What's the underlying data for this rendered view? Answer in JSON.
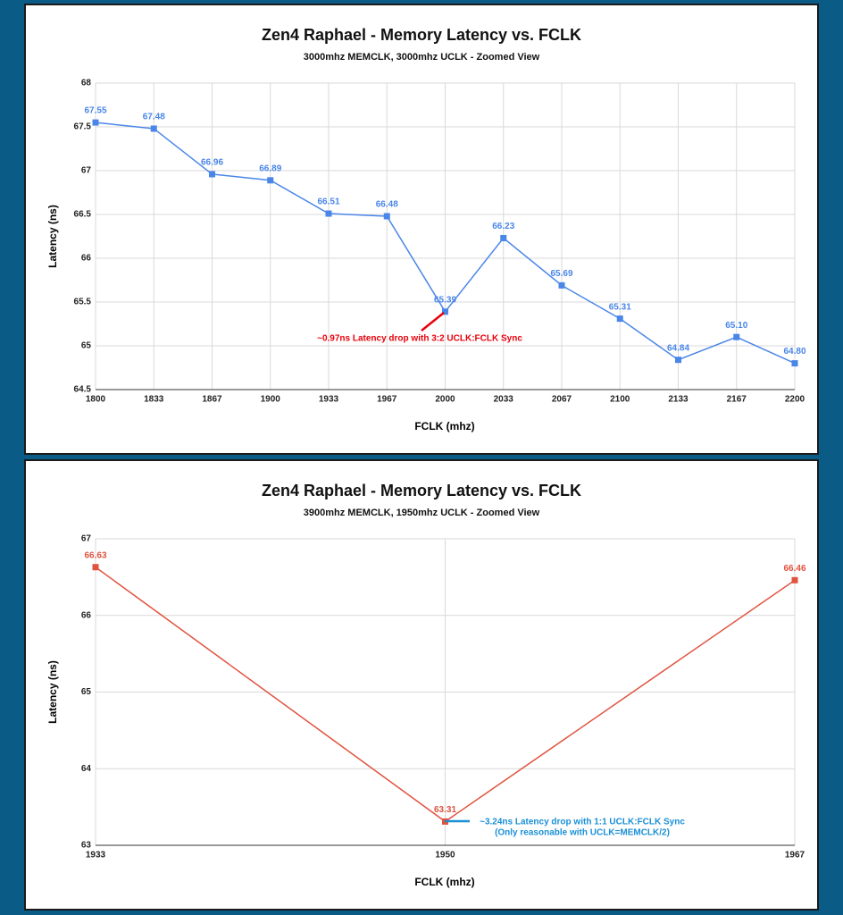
{
  "chart_data": [
    {
      "type": "line",
      "title": "Zen4 Raphael - Memory Latency vs. FCLK",
      "subtitle": "3000mhz MEMCLK, 3000mhz UCLK - Zoomed View",
      "x_label": "FCLK (mhz)",
      "y_label": "Latency (ns)",
      "categories": [
        "1800",
        "1833",
        "1867",
        "1900",
        "1933",
        "1967",
        "2000",
        "2033",
        "2067",
        "2100",
        "2133",
        "2167",
        "2200"
      ],
      "values": [
        67.55,
        67.48,
        66.96,
        66.89,
        66.51,
        66.48,
        65.39,
        66.23,
        65.69,
        65.31,
        64.84,
        65.1,
        64.8
      ],
      "value_labels": [
        "67.55",
        "67.48",
        "66.96",
        "66.89",
        "66.51",
        "66.48",
        "65.39",
        "66.23",
        "65.69",
        "65.31",
        "64.84",
        "65.10",
        "64.80"
      ],
      "color": "#4a86e8",
      "ylim": [
        64.5,
        68
      ],
      "yticks": [
        64.5,
        65,
        65.5,
        66,
        66.5,
        67,
        67.5,
        68
      ],
      "grid": true,
      "annotations": [
        {
          "text": [
            "~0.97ns Latency drop with 3:2 UCLK:FCLK Sync"
          ],
          "color": "#e8000b"
        }
      ]
    },
    {
      "type": "line",
      "title": "Zen4 Raphael - Memory Latency vs. FCLK",
      "subtitle": "3900mhz MEMCLK, 1950mhz UCLK - Zoomed View",
      "x_label": "FCLK (mhz)",
      "y_label": "Latency (ns)",
      "categories": [
        "1933",
        "1950",
        "1967"
      ],
      "values": [
        66.63,
        63.31,
        66.46
      ],
      "color": "#e0533f",
      "ylim": [
        63,
        67
      ],
      "yticks": [
        63,
        64,
        65,
        66,
        67
      ],
      "grid": true,
      "annotations": [
        {
          "text": [
            "~3.24ns Latency drop with 1:1 UCLK:FCLK Sync",
            "(Only reasonable with UCLK=MEMCLK/2)"
          ],
          "color": "#1a8fd6"
        }
      ]
    }
  ]
}
